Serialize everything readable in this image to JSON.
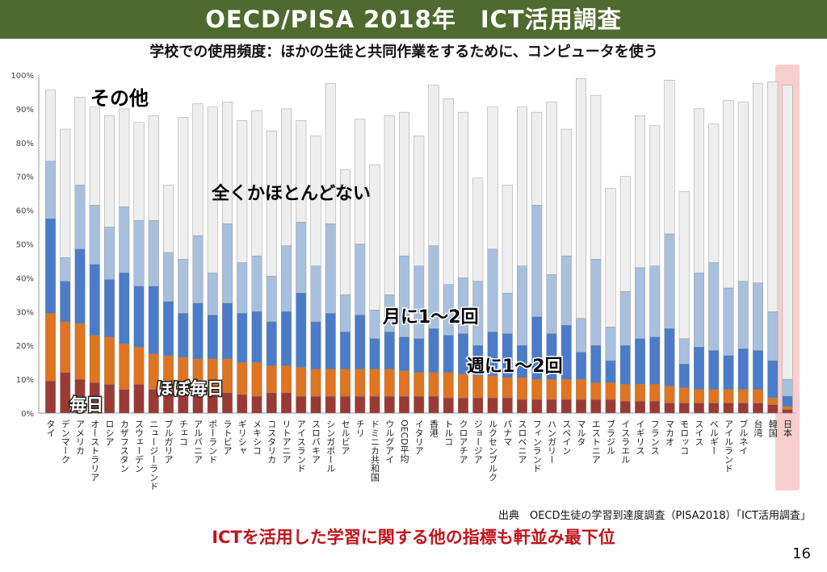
{
  "slide": {
    "title": "OECD/PISA 2018年　ICT活用調査",
    "source": "出典　OECD生徒の学習到達度調査（PISA2018）「ICT活用調査」",
    "conclusion": "ICTを活用した学習に関する他の指標も軒並み最下位",
    "page_number": "16"
  },
  "colors": {
    "header_bg": "#4e6a2e",
    "conclusion_text": "#c0141c",
    "highlight_box": "#f4a5a8"
  },
  "chart_data": {
    "type": "bar",
    "stacked": true,
    "title": "学校での使用頻度：ほかの生徒と共同作業をするために、コンピュータを使う",
    "ylim": [
      0,
      100
    ],
    "yticks": [
      "0%",
      "10%",
      "20%",
      "30%",
      "40%",
      "50%",
      "60%",
      "70%",
      "80%",
      "90%",
      "100%"
    ],
    "grid": false,
    "highlight_category": "日本",
    "categories": [
      "タイ",
      "デンマーク",
      "アメリカ",
      "オーストラリア",
      "ロシア",
      "カザフスタン",
      "スウェーデン",
      "ニュージーランド",
      "ブルガリア",
      "チェコ",
      "アルバニア",
      "ポーランド",
      "ラトビア",
      "ギリシャ",
      "メキシコ",
      "コスタリカ",
      "リトアニア",
      "アイスランド",
      "スロバキア",
      "シンガポール",
      "セルビア",
      "チリ",
      "ドミニカ共和国",
      "ウルグアイ",
      "OECD平均",
      "イタリア",
      "香港",
      "トルコ",
      "クロアチア",
      "ジョージア",
      "ルクセンブルク",
      "パナマ",
      "スロベニア",
      "フィンランド",
      "ハンガリー",
      "スペイン",
      "マルタ",
      "エストニア",
      "ブラジル",
      "イスラエル",
      "イギリス",
      "フランス",
      "マカオ",
      "モロッコ",
      "スイス",
      "ベルギー",
      "アイルランド",
      "ブルネイ",
      "台湾",
      "韓国",
      "日本"
    ],
    "series": [
      {
        "name": "毎日",
        "color": "#9b3a35",
        "values": [
          9.5,
          12,
          10,
          9,
          8.5,
          7,
          8.5,
          7,
          6.5,
          6.5,
          6,
          6,
          6,
          5.5,
          5,
          6,
          6,
          5,
          5,
          5,
          5,
          5,
          5,
          5,
          5,
          5,
          5,
          4.5,
          4.5,
          4.5,
          4.5,
          4.5,
          4,
          4,
          4,
          4,
          4,
          4,
          4,
          3.5,
          3.5,
          3.5,
          3,
          3,
          3,
          3,
          3,
          3,
          3,
          2.5,
          1
        ]
      },
      {
        "name": "ほぼ毎日",
        "color": "#e07420",
        "values": [
          20,
          15,
          16.5,
          14,
          14,
          13.5,
          11,
          10.5,
          10.5,
          10,
          10,
          10,
          10,
          9.5,
          10,
          8,
          8,
          8.5,
          8,
          8,
          8,
          8,
          8,
          8,
          7.5,
          7,
          7,
          7.5,
          7,
          6.5,
          6.5,
          6,
          6.5,
          6,
          6,
          6,
          6,
          5,
          5,
          5,
          5,
          5,
          5,
          4.5,
          4,
          4,
          4,
          4,
          4,
          2,
          1
        ]
      },
      {
        "name": "週に1～2回",
        "color": "#4a7cc9",
        "values": [
          28,
          12,
          22,
          21,
          17,
          21,
          18,
          20,
          16,
          13,
          16.5,
          13,
          16.5,
          14.5,
          15,
          13,
          16,
          22,
          14,
          16.5,
          11,
          16,
          9,
          11,
          10,
          10,
          13,
          11,
          12,
          9,
          13,
          13,
          9.5,
          18.5,
          13.5,
          16,
          8,
          11,
          6.5,
          11.5,
          13.5,
          14,
          17,
          7,
          12.5,
          11.5,
          10,
          12,
          11.5,
          11,
          3
        ]
      },
      {
        "name": "月に1～2回",
        "color": "#a8c0de",
        "values": [
          17,
          7,
          19,
          17.5,
          15.5,
          19.5,
          19.5,
          19.5,
          14.5,
          16,
          20,
          12.5,
          23.5,
          15,
          16.5,
          13.5,
          19.5,
          21,
          16.5,
          26.5,
          11,
          21,
          8.5,
          11,
          24,
          21.5,
          24.5,
          15,
          16.5,
          19,
          24.5,
          12,
          23.5,
          33,
          17.5,
          20.5,
          10,
          25.5,
          10,
          16,
          21,
          21,
          28,
          7.5,
          22,
          26,
          20,
          20,
          20,
          14.5,
          5
        ]
      },
      {
        "name": "全くかほとんどない",
        "color": "#eeeeee",
        "values": [
          21,
          38,
          26,
          29,
          33,
          29,
          29,
          31,
          20,
          42,
          39,
          49,
          36,
          42,
          43,
          43,
          40.5,
          30,
          38.5,
          41.5,
          37,
          37,
          43,
          53,
          42.5,
          38.5,
          47.5,
          55,
          49,
          30.5,
          42,
          32,
          47,
          27.5,
          51,
          37.5,
          71,
          48.5,
          41,
          34,
          45,
          41.5,
          45.5,
          43.5,
          48.5,
          41,
          55.5,
          53,
          59,
          68,
          87
        ]
      }
    ],
    "annotations": [
      "その他",
      "全くかほとんどない",
      "月に1～2回",
      "週に1～2回",
      "ほぼ毎日",
      "毎日"
    ]
  }
}
